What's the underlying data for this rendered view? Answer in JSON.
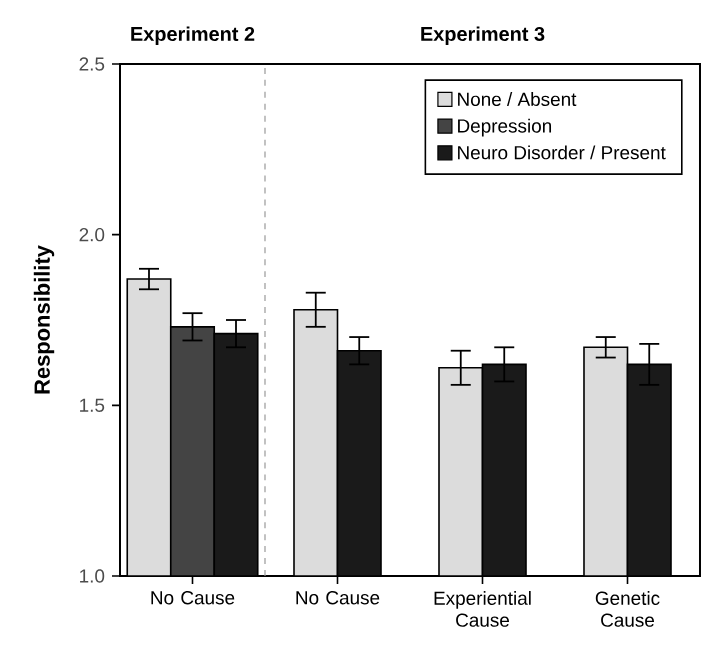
{
  "chart_data": {
    "type": "bar",
    "ylabel": "Responsibility",
    "categories": [
      "No Cause",
      "No Cause",
      "Experiential Cause",
      "Genetic Cause"
    ],
    "series": [
      {
        "name": "None / Absent",
        "color": "#dcdcdc",
        "values": [
          1.87,
          1.78,
          1.61,
          1.67
        ],
        "errors": [
          0.03,
          0.05,
          0.05,
          0.03
        ]
      },
      {
        "name": "Depression",
        "color": "#444444",
        "values": [
          1.73,
          null,
          null,
          null
        ],
        "errors": [
          0.04,
          null,
          null,
          null
        ]
      },
      {
        "name": "Neuro Disorder / Present",
        "color": "#1a1a1a",
        "values": [
          1.71,
          1.66,
          1.62,
          1.62
        ],
        "errors": [
          0.04,
          0.04,
          0.05,
          0.06
        ]
      }
    ],
    "ylim": [
      1.0,
      2.5
    ],
    "yticks": [
      {
        "value": 1.0,
        "label": "1.0"
      },
      1.5,
      {
        "value": 2.0,
        "label": "2.0"
      },
      2.5
    ],
    "grid": false,
    "legend": "top right",
    "annotations": [
      "Experiment 2",
      "Experiment 3"
    ]
  }
}
